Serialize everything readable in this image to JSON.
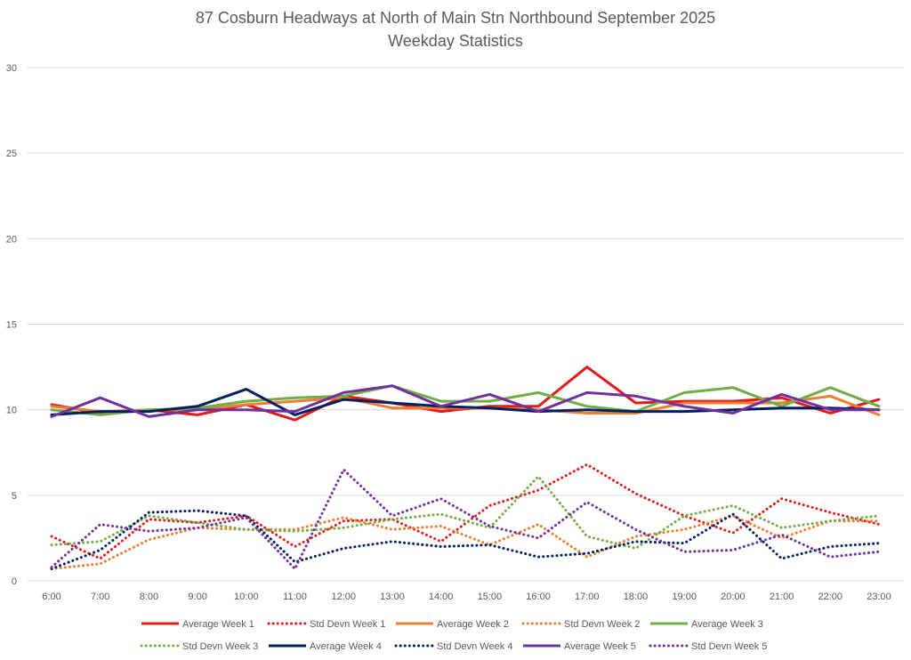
{
  "chart_data": {
    "type": "line",
    "title": "87 Cosburn Headways at North of Main Stn Northbound September 2025",
    "subtitle": "Weekday Statistics",
    "xlabel": "",
    "ylabel": "",
    "ylim": [
      0,
      30
    ],
    "yticks": [
      0,
      5,
      10,
      15,
      20,
      25,
      30
    ],
    "grid": "horizontal",
    "legend_position": "bottom",
    "categories": [
      "6:00",
      "7:00",
      "8:00",
      "9:00",
      "10:00",
      "11:00",
      "12:00",
      "13:00",
      "14:00",
      "15:00",
      "16:00",
      "17:00",
      "18:00",
      "19:00",
      "20:00",
      "21:00",
      "22:00",
      "23:00"
    ],
    "series": [
      {
        "name": "Average Week 1",
        "color": "#e31a1c",
        "style": "solid",
        "values": [
          10.3,
          9.8,
          10.0,
          9.7,
          10.3,
          9.4,
          10.8,
          10.4,
          9.9,
          10.2,
          10.2,
          12.5,
          10.4,
          10.5,
          10.5,
          10.7,
          9.8,
          10.6
        ]
      },
      {
        "name": "Std Devn Week 1",
        "color": "#e31a1c",
        "style": "dotted",
        "values": [
          2.6,
          1.3,
          3.6,
          3.4,
          3.8,
          2.0,
          3.5,
          3.6,
          2.3,
          4.4,
          5.3,
          6.8,
          5.1,
          3.8,
          2.8,
          4.8,
          4.0,
          3.3
        ]
      },
      {
        "name": "Average Week 2",
        "color": "#ed7d31",
        "style": "solid",
        "values": [
          10.2,
          9.9,
          10.0,
          10.0,
          10.3,
          10.5,
          10.7,
          10.1,
          10.1,
          10.1,
          10.0,
          9.8,
          9.8,
          10.4,
          10.4,
          10.4,
          10.8,
          9.7
        ]
      },
      {
        "name": "Std Devn Week 2",
        "color": "#ed7d31",
        "style": "dotted",
        "values": [
          0.7,
          1.0,
          2.4,
          3.1,
          3.0,
          3.0,
          3.7,
          3.0,
          3.2,
          2.1,
          3.3,
          1.4,
          2.6,
          3.0,
          3.8,
          2.5,
          3.5,
          3.5
        ]
      },
      {
        "name": "Average Week 3",
        "color": "#70ad47",
        "style": "solid",
        "values": [
          10.0,
          9.7,
          10.0,
          10.1,
          10.5,
          10.7,
          10.8,
          11.4,
          10.5,
          10.5,
          11.0,
          10.2,
          9.9,
          11.0,
          11.3,
          10.2,
          11.3,
          10.2
        ]
      },
      {
        "name": "Std Devn Week 3",
        "color": "#70ad47",
        "style": "dotted",
        "values": [
          2.1,
          2.3,
          3.8,
          3.4,
          3.0,
          2.9,
          3.1,
          3.6,
          3.9,
          3.1,
          6.1,
          2.6,
          1.9,
          3.8,
          4.4,
          3.1,
          3.5,
          3.8
        ]
      },
      {
        "name": "Average Week 4",
        "color": "#002060",
        "style": "solid",
        "values": [
          9.7,
          9.9,
          9.9,
          10.2,
          11.2,
          9.7,
          10.6,
          10.4,
          10.2,
          10.1,
          9.9,
          10.0,
          9.9,
          9.9,
          10.0,
          10.1,
          10.1,
          10.0
        ]
      },
      {
        "name": "Std Devn Week 4",
        "color": "#002060",
        "style": "dotted",
        "values": [
          0.7,
          1.8,
          4.0,
          4.1,
          3.8,
          1.1,
          1.9,
          2.3,
          2.0,
          2.1,
          1.4,
          1.6,
          2.3,
          2.2,
          3.9,
          1.3,
          2.0,
          2.2
        ]
      },
      {
        "name": "Average Week 5",
        "color": "#7030a0",
        "style": "solid",
        "values": [
          9.6,
          10.7,
          9.6,
          10.0,
          10.0,
          9.9,
          11.0,
          11.4,
          10.2,
          10.9,
          9.9,
          11.0,
          10.8,
          10.2,
          9.8,
          10.9,
          10.0,
          10.0
        ]
      },
      {
        "name": "Std Devn Week 5",
        "color": "#7030a0",
        "style": "dotted",
        "values": [
          0.8,
          3.3,
          2.9,
          3.1,
          3.7,
          0.7,
          6.5,
          3.8,
          4.8,
          3.2,
          2.5,
          4.6,
          3.0,
          1.7,
          1.8,
          2.7,
          1.4,
          1.7
        ]
      }
    ]
  }
}
